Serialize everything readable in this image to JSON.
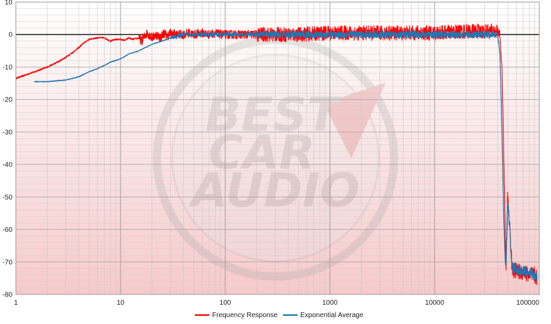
{
  "chart_data": {
    "type": "line",
    "title": "",
    "xlabel": "",
    "ylabel": "",
    "x_scale": "log",
    "xlim": [
      1,
      100000
    ],
    "ylim": [
      -80,
      10
    ],
    "x_ticks": [
      "1",
      "10",
      "100",
      "1000",
      "10000",
      "100000"
    ],
    "y_ticks": [
      "10",
      "0",
      "-10",
      "-20",
      "-30",
      "-40",
      "-50",
      "-60",
      "-70",
      "-80"
    ],
    "grid": true,
    "legend": "bottom-center",
    "colors": {
      "frequency_response": "#ff0000",
      "exponential_average": "#1f77b4",
      "zero_line": "#000000"
    },
    "series": [
      {
        "name": "Frequency Response",
        "color": "#ff0000",
        "x": [
          1,
          1.5,
          2,
          2.5,
          3,
          3.5,
          4,
          4.5,
          5,
          5.5,
          6,
          7,
          8,
          9,
          10,
          11,
          12,
          13,
          14,
          15,
          16,
          17,
          18,
          20,
          22,
          24,
          26,
          28,
          30,
          35,
          40,
          45,
          50,
          60,
          70,
          80,
          90,
          100,
          150,
          200,
          300,
          500,
          1000,
          2000,
          5000,
          10000,
          20000,
          30000,
          35000,
          38000,
          40000,
          42000,
          44000,
          46000,
          48000,
          50000,
          55000,
          60000,
          70000,
          80000,
          90000,
          95000
        ],
        "y": [
          -13.5,
          -11.5,
          -10,
          -8.5,
          -7,
          -5.5,
          -4,
          -2.5,
          -1.5,
          -1.2,
          -1,
          -1,
          -2,
          -1.5,
          -1.5,
          -1.8,
          -1,
          -1.5,
          -1.2,
          -1.2,
          -2,
          -0.5,
          0.5,
          -1,
          0,
          -1,
          0.5,
          -0.5,
          0.5,
          0,
          0,
          0.5,
          0,
          0.5,
          0,
          0.5,
          0,
          0,
          0,
          0,
          0,
          0,
          0.5,
          0.5,
          0.5,
          0.5,
          1,
          1,
          1,
          1,
          1,
          0,
          -10,
          -40,
          -72,
          -50,
          -72,
          -73,
          -73,
          -74,
          -74,
          -75
        ]
      },
      {
        "name": "Exponential Average",
        "color": "#1f77b4",
        "x": [
          1.5,
          2,
          3,
          4,
          5,
          6,
          7,
          8,
          10,
          12,
          15,
          20,
          25,
          30,
          40,
          50,
          60,
          80,
          100,
          150,
          200,
          300,
          500,
          1000,
          2000,
          5000,
          10000,
          20000,
          30000,
          35000,
          38000,
          40000,
          42000,
          44000,
          46000,
          48000,
          50000,
          55000,
          60000,
          70000,
          80000,
          90000,
          95000
        ],
        "y": [
          -14.5,
          -14.5,
          -14,
          -13,
          -11.5,
          -10.5,
          -9.5,
          -8.5,
          -7.5,
          -6,
          -5,
          -3,
          -2,
          -1,
          0,
          0,
          0,
          0,
          0,
          0,
          0,
          0,
          0,
          0,
          0,
          0,
          0,
          0,
          0,
          0,
          0,
          0,
          -5,
          -30,
          -60,
          -72,
          -50,
          -72,
          -72,
          -73,
          -73,
          -74,
          -75
        ]
      }
    ]
  }
}
